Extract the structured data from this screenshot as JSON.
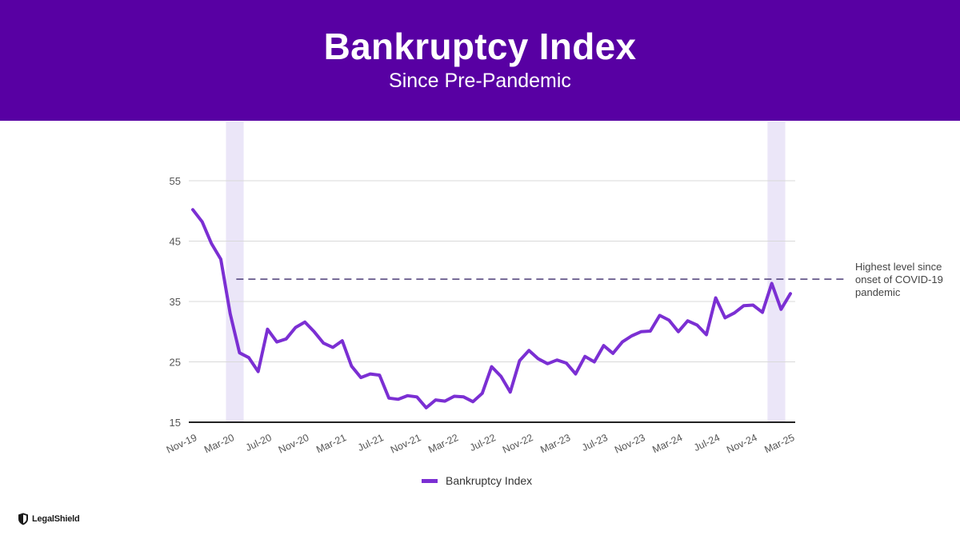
{
  "header": {
    "title": "Bankruptcy Index",
    "subtitle": "Since Pre-Pandemic"
  },
  "annotation": {
    "text": "Highest level since onset of COVID-19 pandemic",
    "reference_value": 38.7
  },
  "legend": {
    "label": "Bankruptcy Index"
  },
  "logo": {
    "text": "LegalShield"
  },
  "colors": {
    "header_bg": "#5800a3",
    "line": "#7b2fd3",
    "highlight_band": "#ebe6f8",
    "reference_line": "#3a2a6a",
    "grid": "#d9d9d9"
  },
  "chart_data": {
    "type": "line",
    "title": "Bankruptcy Index",
    "subtitle": "Since Pre-Pandemic",
    "xlabel": "",
    "ylabel": "",
    "ylim": [
      15,
      58
    ],
    "yticks": [
      15,
      25,
      35,
      45,
      55
    ],
    "grid": true,
    "legend_position": "bottom",
    "x_tick_labels": [
      "Nov-19",
      "Mar-20",
      "Jul-20",
      "Nov-20",
      "Mar-21",
      "Jul-21",
      "Nov-21",
      "Mar-22",
      "Jul-22",
      "Nov-22",
      "Mar-23",
      "Jul-23",
      "Nov-23",
      "Mar-24",
      "Jul-24",
      "Nov-24",
      "Mar-25"
    ],
    "highlight_periods": [
      {
        "start": "Mar-20",
        "end": "Apr-20"
      },
      {
        "start": "Jan-25",
        "end": "Feb-25"
      }
    ],
    "reference_line": {
      "value": 38.7,
      "label": "Highest level since onset of COVID-19 pandemic"
    },
    "x": [
      "Nov-19",
      "Dec-19",
      "Jan-20",
      "Feb-20",
      "Mar-20",
      "Apr-20",
      "May-20",
      "Jun-20",
      "Jul-20",
      "Aug-20",
      "Sep-20",
      "Oct-20",
      "Nov-20",
      "Dec-20",
      "Jan-21",
      "Feb-21",
      "Mar-21",
      "Apr-21",
      "May-21",
      "Jun-21",
      "Jul-21",
      "Aug-21",
      "Sep-21",
      "Oct-21",
      "Nov-21",
      "Dec-21",
      "Jan-22",
      "Feb-22",
      "Mar-22",
      "Apr-22",
      "May-22",
      "Jun-22",
      "Jul-22",
      "Aug-22",
      "Sep-22",
      "Oct-22",
      "Nov-22",
      "Dec-22",
      "Jan-23",
      "Feb-23",
      "Mar-23",
      "Apr-23",
      "May-23",
      "Jun-23",
      "Jul-23",
      "Aug-23",
      "Sep-23",
      "Oct-23",
      "Nov-23",
      "Dec-23",
      "Jan-24",
      "Feb-24",
      "Mar-24",
      "Apr-24",
      "May-24",
      "Jun-24",
      "Jul-24",
      "Aug-24",
      "Sep-24",
      "Oct-24",
      "Nov-24",
      "Dec-24",
      "Jan-25",
      "Feb-25",
      "Mar-25"
    ],
    "series": [
      {
        "name": "Bankruptcy Index",
        "values": [
          50.2,
          48.2,
          44.6,
          42.0,
          33.0,
          26.5,
          25.7,
          23.4,
          30.4,
          28.3,
          28.8,
          30.7,
          31.6,
          30.0,
          28.1,
          27.4,
          28.5,
          24.3,
          22.4,
          23.0,
          22.8,
          19.0,
          18.8,
          19.4,
          19.2,
          17.4,
          18.7,
          18.5,
          19.3,
          19.2,
          18.4,
          19.8,
          24.2,
          22.6,
          20.0,
          25.2,
          26.9,
          25.5,
          24.7,
          25.3,
          24.8,
          23.0,
          25.9,
          25.0,
          27.7,
          26.4,
          28.3,
          29.3,
          30.0,
          30.1,
          32.7,
          31.9,
          30.0,
          31.8,
          31.1,
          29.5,
          35.6,
          32.3,
          33.1,
          34.3,
          34.4,
          33.2,
          38.0,
          33.7,
          36.3
        ]
      }
    ]
  }
}
